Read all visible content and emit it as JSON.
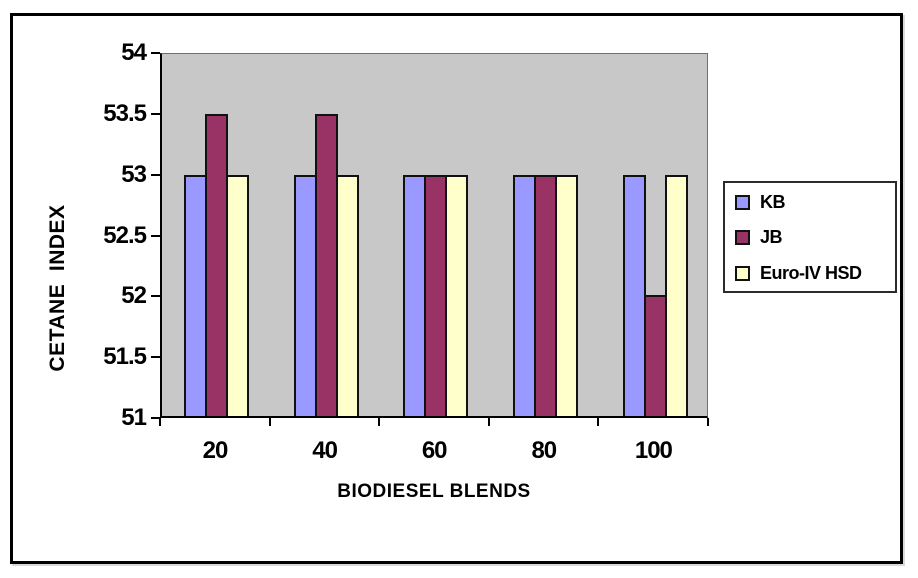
{
  "chart_data": {
    "type": "bar",
    "title": "",
    "categories": [
      "20",
      "40",
      "60",
      "80",
      "100"
    ],
    "series": [
      {
        "name": "KB",
        "color": "#9999FF",
        "values": [
          53,
          53,
          53,
          53,
          53
        ]
      },
      {
        "name": "JB",
        "color": "#993366",
        "values": [
          53.5,
          53.5,
          53,
          53,
          52
        ]
      },
      {
        "name": "Euro-IV HSD",
        "color": "#FFFFCC",
        "values": [
          53,
          53,
          53,
          53,
          53
        ]
      }
    ],
    "xlabel": "BIODIESEL BLENDS",
    "ylabel": "CETANE  INDEX",
    "ylim": [
      51,
      54
    ],
    "ytick_step": 0.5,
    "yticks": [
      "54",
      "53.5",
      "53",
      "52.5",
      "52",
      "51.5",
      "51"
    ],
    "grid": false,
    "legend_position": "right",
    "plot_background": "#C8C8C8",
    "bar_border_color": "#111111",
    "figure_border_color": "#000000"
  }
}
